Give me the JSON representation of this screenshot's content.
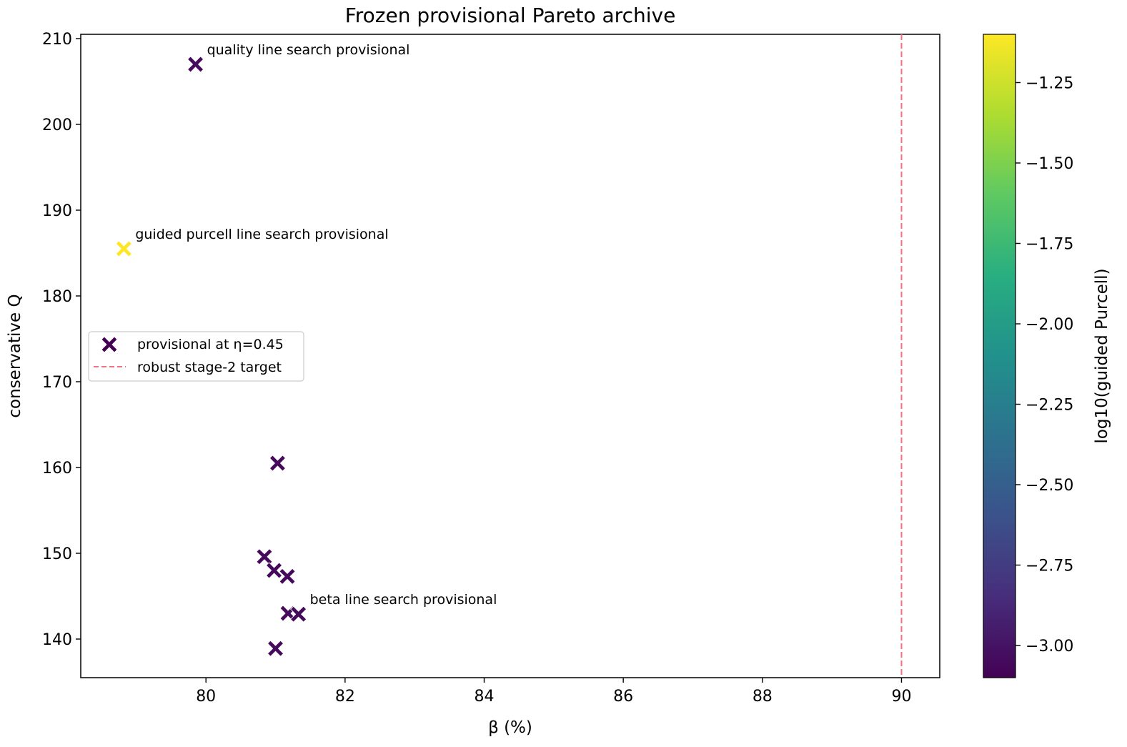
{
  "chart_data": {
    "type": "scatter",
    "title": "Frozen provisional Pareto archive",
    "xlabel": "β (%)",
    "ylabel": "conservative Q",
    "xlim": [
      78.2,
      90.55
    ],
    "ylim": [
      135.5,
      210.5
    ],
    "xticks": [
      80,
      82,
      84,
      86,
      88,
      90
    ],
    "yticks": [
      140,
      150,
      160,
      170,
      180,
      190,
      200,
      210
    ],
    "grid": false,
    "legend_position": "center-left",
    "marker": "X",
    "colormap": "viridis",
    "colorbar": {
      "label": "log10(guided Purcell)",
      "range": [
        -3.1,
        -1.1
      ],
      "ticks": [
        -1.25,
        -1.5,
        -1.75,
        -2.0,
        -2.25,
        -2.5,
        -2.75,
        -3.0
      ],
      "tick_labels": [
        "−1.25",
        "−1.50",
        "−1.75",
        "−2.00",
        "−2.25",
        "−2.50",
        "−2.75",
        "−3.00"
      ]
    },
    "series": [
      {
        "name": "provisional at η=0.45",
        "points": [
          {
            "x": 79.85,
            "y": 207.0,
            "c": -3.05
          },
          {
            "x": 78.82,
            "y": 185.5,
            "c": -1.1
          },
          {
            "x": 81.03,
            "y": 160.5,
            "c": -3.05
          },
          {
            "x": 80.84,
            "y": 149.6,
            "c": -3.05
          },
          {
            "x": 80.98,
            "y": 148.0,
            "c": -3.05
          },
          {
            "x": 81.17,
            "y": 147.3,
            "c": -3.05
          },
          {
            "x": 81.18,
            "y": 143.0,
            "c": -3.05
          },
          {
            "x": 81.33,
            "y": 142.9,
            "c": -3.05
          },
          {
            "x": 81.0,
            "y": 138.9,
            "c": -3.05
          }
        ]
      }
    ],
    "reference_line": {
      "name": "robust stage-2 target",
      "orientation": "vertical",
      "x": 90.0,
      "color": "#f47082",
      "style": "dashed"
    },
    "annotations": [
      {
        "text": "quality line search provisional",
        "x": 79.85,
        "y": 207.0
      },
      {
        "text": "guided purcell line search provisional",
        "x": 78.82,
        "y": 185.5
      },
      {
        "text": "beta line search provisional",
        "x": 81.33,
        "y": 142.9
      }
    ],
    "legend": [
      {
        "label": "provisional at η=0.45",
        "marker": "X",
        "color": "#440154"
      },
      {
        "label": "robust stage-2 target",
        "marker": "dashed-line",
        "color": "#f47082"
      }
    ]
  }
}
